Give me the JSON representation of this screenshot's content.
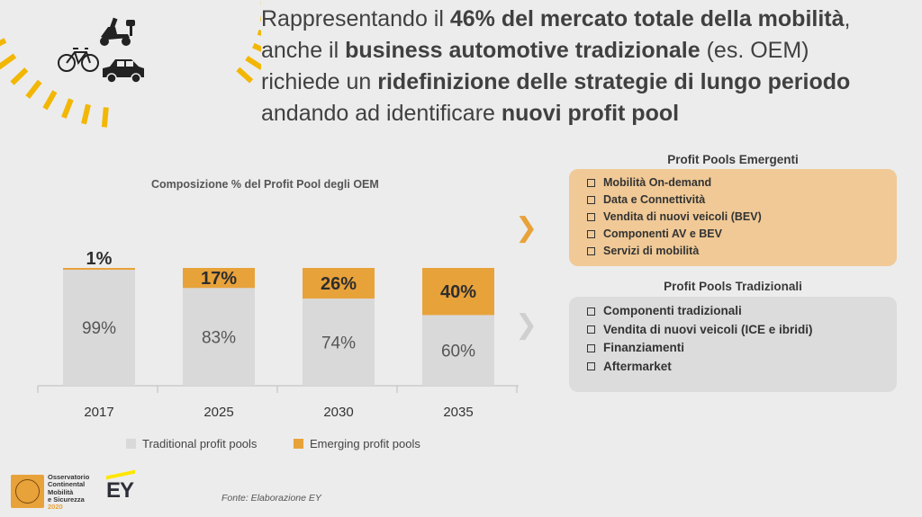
{
  "headline": {
    "line1_pre": "Rappresentando il ",
    "line1_bold": "46% del mercato totale della mobilità",
    "line1_post": ",",
    "line2_pre": "anche il ",
    "line2_bold": "business automotive tradizionale",
    "line2_post": " (es. OEM)",
    "line3_pre": "richiede un ",
    "line3_bold": "ridefinizione delle strategie di lungo periodo",
    "line4_pre": "andando ad identificare ",
    "line4_bold": "nuovi profit pool"
  },
  "chart_data": {
    "type": "bar",
    "stacked": true,
    "title": "Composizione % del Profit Pool degli OEM",
    "categories": [
      "2017",
      "2025",
      "2030",
      "2035"
    ],
    "series": [
      {
        "name": "Traditional profit pools",
        "values": [
          99,
          83,
          74,
          60
        ],
        "labels": [
          "99%",
          "83%",
          "74%",
          "60%"
        ]
      },
      {
        "name": "Emerging profit pools",
        "values": [
          1,
          17,
          26,
          40
        ],
        "labels": [
          "1%",
          "17%",
          "26%",
          "40%"
        ]
      }
    ],
    "legend_position": "bottom",
    "grid": false
  },
  "colors": {
    "traditional": "#d9d9d9",
    "emerging": "#e8a23a",
    "accent_yellow": "#f2b705",
    "ey_yellow": "#ffe600"
  },
  "emerging_box": {
    "title": "Profit Pools Emergenti",
    "items": [
      "Mobilità On-demand",
      "Data e Connettività",
      "Vendita di nuovi veicoli (BEV)",
      "Componenti AV e BEV",
      "Servizi di mobilità"
    ]
  },
  "traditional_box": {
    "title": "Profit Pools Tradizionali",
    "items": [
      "Componenti tradizionali",
      "Vendita di nuovi veicoli (ICE e ibridi)",
      "Finanziamenti",
      "Aftermarket"
    ]
  },
  "icons": [
    "scooter-icon",
    "bicycle-icon",
    "car-icon",
    "chevron-right-icon"
  ],
  "footer": {
    "org_lines": [
      "Osservatorio",
      "Continental",
      "Mobilità",
      "e Sicurezza"
    ],
    "year": "2020",
    "ey": "EY",
    "source": "Fonte: Elaborazione EY"
  }
}
